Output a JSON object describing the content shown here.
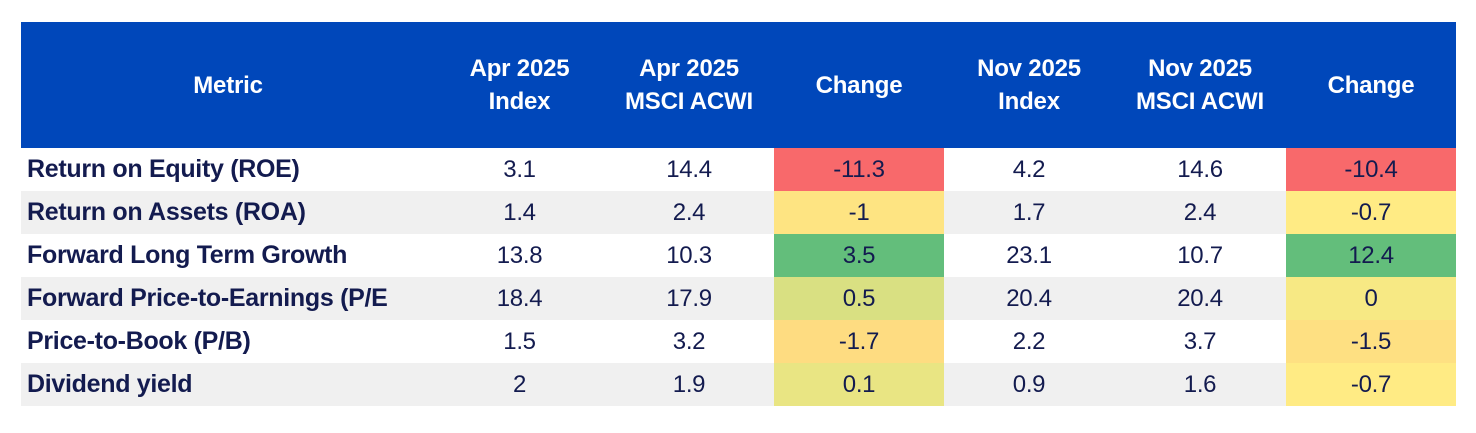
{
  "colors": {
    "header_bg": "#0047BA",
    "header_text": "#FFFFFF",
    "body_text": "#131B4F",
    "stripe_bg": "#F0F0F0",
    "scale_negative": "#F8696B",
    "scale_neutral": "#FFEB84",
    "scale_positive": "#63BE7B"
  },
  "table": {
    "headers": {
      "metric": "Metric",
      "apr_index": "Apr 2025\nIndex",
      "apr_acwi": "Apr 2025\nMSCI ACWI",
      "apr_change": "Change",
      "nov_index": "Nov 2025\nIndex",
      "nov_acwi": "Nov 2025\nMSCI ACWI",
      "nov_change": "Change"
    },
    "rows": [
      {
        "metric": "Return on Equity (ROE)",
        "apr_index": "3.1",
        "apr_acwi": "14.4",
        "apr_change": "-11.3",
        "apr_change_bg": "#F8696B",
        "nov_index": "4.2",
        "nov_acwi": "14.6",
        "nov_change": "-10.4",
        "nov_change_bg": "#F8696B"
      },
      {
        "metric": "Return on Assets (ROA)",
        "apr_index": "1.4",
        "apr_acwi": "2.4",
        "apr_change": "-1",
        "apr_change_bg": "#FEE482",
        "nov_index": "1.7",
        "nov_acwi": "2.4",
        "nov_change": "-0.7",
        "nov_change_bg": "#FFEB84"
      },
      {
        "metric": "Forward Long Term Growth",
        "apr_index": "13.8",
        "apr_acwi": "10.3",
        "apr_change": "3.5",
        "apr_change_bg": "#63BE7B",
        "nov_index": "23.1",
        "nov_acwi": "10.7",
        "nov_change": "12.4",
        "nov_change_bg": "#63BE7B"
      },
      {
        "metric": "Forward Price-to-Earnings (P/E",
        "apr_index": "18.4",
        "apr_acwi": "17.9",
        "apr_change": "0.5",
        "apr_change_bg": "#D9E082",
        "nov_index": "20.4",
        "nov_acwi": "20.4",
        "nov_change": "0",
        "nov_change_bg": "#F7E984"
      },
      {
        "metric": "Price-to-Book (P/B)",
        "apr_index": "1.5",
        "apr_acwi": "3.2",
        "apr_change": "-1.7",
        "apr_change_bg": "#FEDC81",
        "nov_index": "2.2",
        "nov_acwi": "3.7",
        "nov_change": "-1.5",
        "nov_change_bg": "#FEE082"
      },
      {
        "metric": "Dividend yield",
        "apr_index": "2",
        "apr_acwi": "1.9",
        "apr_change": "0.1",
        "apr_change_bg": "#E9E583",
        "nov_index": "0.9",
        "nov_acwi": "1.6",
        "nov_change": "-0.7",
        "nov_change_bg": "#FFEB84"
      }
    ]
  },
  "chart_data": {
    "type": "table",
    "title": "",
    "columns": [
      "Metric",
      "Apr 2025 Index",
      "Apr 2025 MSCI ACWI",
      "Change",
      "Nov 2025 Index",
      "Nov 2025 MSCI ACWI",
      "Change"
    ],
    "rows": [
      [
        "Return on Equity (ROE)",
        3.1,
        14.4,
        -11.3,
        4.2,
        14.6,
        -10.4
      ],
      [
        "Return on Assets (ROA)",
        1.4,
        2.4,
        -1,
        1.7,
        2.4,
        -0.7
      ],
      [
        "Forward Long Term Growth",
        13.8,
        10.3,
        3.5,
        23.1,
        10.7,
        12.4
      ],
      [
        "Forward Price-to-Earnings (P/E",
        18.4,
        17.9,
        0.5,
        20.4,
        20.4,
        0
      ],
      [
        "Price-to-Book (P/B)",
        1.5,
        3.2,
        -1.7,
        2.2,
        3.7,
        -1.5
      ],
      [
        "Dividend yield",
        2,
        1.9,
        0.1,
        0.9,
        1.6,
        -0.7
      ]
    ],
    "notes": "Change columns use a red-yellow-green 3-color conditional formatting scale (red = most negative, yellow = near zero, green = most positive)"
  }
}
